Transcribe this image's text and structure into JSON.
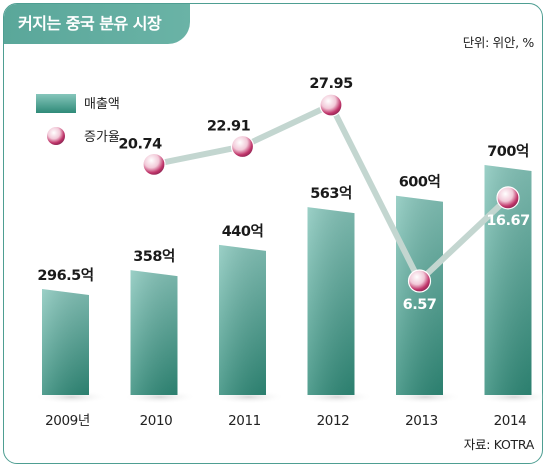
{
  "header": {
    "title": "커지는 중국 분유 시장",
    "unit": "단위: 위안, %",
    "source": "자료: KOTRA"
  },
  "chart_data": {
    "type": "bar",
    "categories": [
      "2009년",
      "2010",
      "2011",
      "2012",
      "2013",
      "2014"
    ],
    "series": [
      {
        "name": "매출액",
        "kind": "bar",
        "values": [
          296.5,
          358,
          440,
          563,
          600,
          700
        ],
        "labels": [
          "296.5억",
          "358억",
          "440억",
          "563억",
          "600억",
          "700억"
        ]
      },
      {
        "name": "증가율",
        "kind": "line",
        "values": [
          null,
          20.74,
          22.91,
          27.95,
          6.57,
          16.67
        ],
        "labels": [
          null,
          "20.74",
          "22.91",
          "27.95",
          "6.57",
          "16.67"
        ]
      }
    ],
    "legend": "top-left",
    "grid": false,
    "colors": {
      "bar_top": "#86c6bb",
      "bar_bottom": "#2f8a78",
      "line": "#c3d6d0",
      "marker": "#c0356a"
    }
  }
}
